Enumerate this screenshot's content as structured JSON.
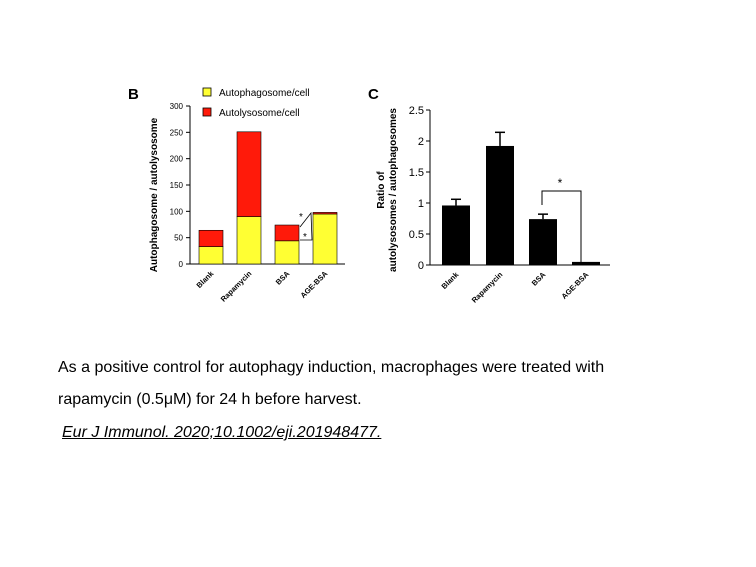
{
  "caption": {
    "line1": "As a positive control for autophagy induction, macrophages were treated with",
    "line2": "rapamycin (0.5μM) for 24 h before harvest.",
    "citation": "Eur J Immunol. 2020;10.1002/eji.201948477."
  },
  "colors": {
    "autophagosome": "#ffff33",
    "autolysosome": "#ff1a0a",
    "bar": "#000000"
  },
  "chart_data": [
    {
      "panel_label": "B",
      "type": "bar",
      "stacked": true,
      "categories": [
        "Blank",
        "Rapamycin",
        "BSA",
        "AGE-BSA"
      ],
      "series": [
        {
          "name": "Autophagosome/cell",
          "color": "#ffff33",
          "values": [
            33,
            90,
            44,
            95
          ]
        },
        {
          "name": "Autolysosome/cell",
          "color": "#ff1a0a",
          "values": [
            31,
            161,
            30,
            3
          ]
        }
      ],
      "ylabel": "Autophagosome / autolysosome",
      "xlabel": "",
      "ylim": [
        0,
        300
      ],
      "yticks": [
        0,
        50,
        100,
        150,
        200,
        250,
        300
      ],
      "legend": "top",
      "annotations": [
        "*",
        "*"
      ]
    },
    {
      "panel_label": "C",
      "type": "bar",
      "categories": [
        "Blank",
        "Rapamycin",
        "BSA",
        "AGE-BSA"
      ],
      "values": [
        0.96,
        1.92,
        0.74,
        0.05
      ],
      "errors": [
        0.1,
        0.22,
        0.08,
        0
      ],
      "ylabel": "Ratio of autolysosomes / autophagosomes",
      "ylabel_lines": [
        "Ratio of",
        "autolysosomes / autophagosomes"
      ],
      "xlabel": "",
      "ylim": [
        0,
        2.5
      ],
      "yticks": [
        "0",
        "0.5",
        "1",
        "1.5",
        "2",
        "2.5"
      ],
      "annotations": [
        "*"
      ]
    }
  ]
}
